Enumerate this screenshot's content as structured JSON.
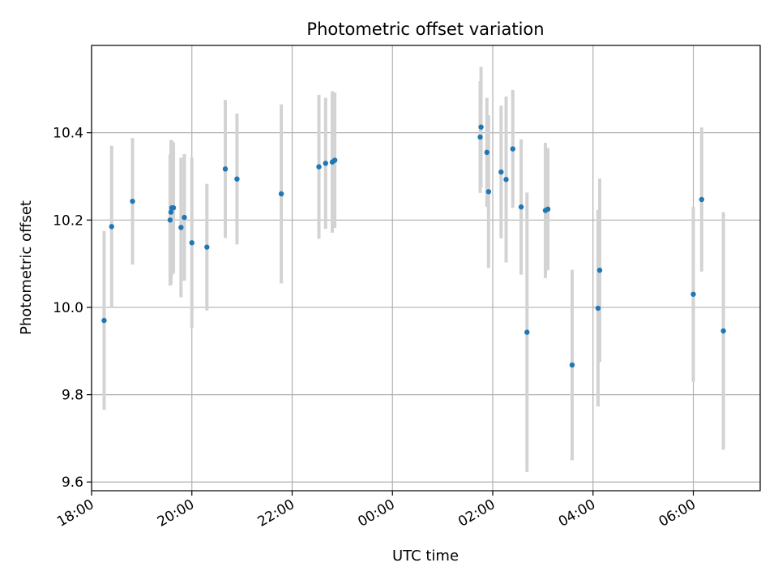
{
  "chart_data": {
    "type": "scatter",
    "title": "Photometric offset variation",
    "xlabel": "UTC time",
    "ylabel": "Photometric offset",
    "x_axis": "time",
    "x_range": [
      "18:00 (day 1)",
      "07:20 (day 2)"
    ],
    "ylim": [
      9.58,
      10.6
    ],
    "grid": true,
    "x_ticks": [
      "18:00",
      "20:00",
      "22:00",
      "00:00",
      "02:00",
      "04:00",
      "06:00"
    ],
    "y_ticks": [
      "9.6",
      "9.8",
      "10.0",
      "10.2",
      "10.4"
    ],
    "colors": {
      "point": "#1f77b4",
      "errorbar": "#d3d3d3",
      "grid": "#b0b0b0"
    },
    "points": [
      {
        "t": "18:15",
        "y": 9.97,
        "err": 0.205
      },
      {
        "t": "18:24",
        "y": 10.185,
        "err": 0.185
      },
      {
        "t": "18:49",
        "y": 10.243,
        "err": 0.145
      },
      {
        "t": "19:34",
        "y": 10.2,
        "err": 0.15
      },
      {
        "t": "19:35",
        "y": 10.218,
        "err": 0.165
      },
      {
        "t": "19:36",
        "y": 10.228,
        "err": 0.155
      },
      {
        "t": "19:38",
        "y": 10.228,
        "err": 0.15
      },
      {
        "t": "19:47",
        "y": 10.183,
        "err": 0.16
      },
      {
        "t": "19:51",
        "y": 10.206,
        "err": 0.145
      },
      {
        "t": "20:00",
        "y": 10.148,
        "err": 0.195
      },
      {
        "t": "20:18",
        "y": 10.138,
        "err": 0.145
      },
      {
        "t": "20:40",
        "y": 10.317,
        "err": 0.158
      },
      {
        "t": "20:54",
        "y": 10.294,
        "err": 0.15
      },
      {
        "t": "21:47",
        "y": 10.26,
        "err": 0.205
      },
      {
        "t": "22:32",
        "y": 10.322,
        "err": 0.165
      },
      {
        "t": "22:40",
        "y": 10.33,
        "err": 0.15
      },
      {
        "t": "22:48",
        "y": 10.333,
        "err": 0.162
      },
      {
        "t": "22:51",
        "y": 10.337,
        "err": 0.155
      },
      {
        "t": "01:45",
        "y": 10.39,
        "err": 0.128
      },
      {
        "t": "01:46",
        "y": 10.413,
        "err": 0.138
      },
      {
        "t": "01:53",
        "y": 10.355,
        "err": 0.125
      },
      {
        "t": "01:55",
        "y": 10.265,
        "err": 0.175
      },
      {
        "t": "02:10",
        "y": 10.31,
        "err": 0.152
      },
      {
        "t": "02:16",
        "y": 10.293,
        "err": 0.19
      },
      {
        "t": "02:24",
        "y": 10.363,
        "err": 0.135
      },
      {
        "t": "02:34",
        "y": 10.23,
        "err": 0.155
      },
      {
        "t": "02:41",
        "y": 9.943,
        "err": 0.32
      },
      {
        "t": "03:03",
        "y": 10.222,
        "err": 0.155
      },
      {
        "t": "03:06",
        "y": 10.225,
        "err": 0.14
      },
      {
        "t": "03:35",
        "y": 9.868,
        "err": 0.218
      },
      {
        "t": "04:06",
        "y": 9.998,
        "err": 0.225
      },
      {
        "t": "04:08",
        "y": 10.085,
        "err": 0.21
      },
      {
        "t": "06:00",
        "y": 10.03,
        "err": 0.2
      },
      {
        "t": "06:10",
        "y": 10.247,
        "err": 0.165
      },
      {
        "t": "06:36",
        "y": 9.946,
        "err": 0.272
      }
    ]
  }
}
